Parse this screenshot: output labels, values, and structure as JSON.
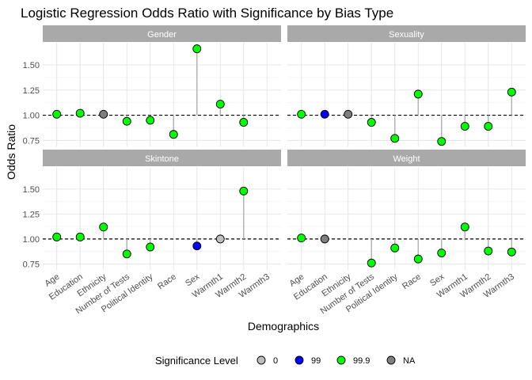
{
  "chart_data": {
    "type": "scatter",
    "title": "Logistic Regression Odds Ratio with Significance by Bias Type",
    "xlabel": "Demographics",
    "ylabel": "Odds Ratio",
    "reference_line": 1.0,
    "ylim": [
      0.69,
      1.72
    ],
    "yticks": [
      0.75,
      1.0,
      1.25,
      1.5
    ],
    "ytick_labels": [
      "0.75",
      "1.00",
      "1.25",
      "1.50"
    ],
    "grid": true,
    "legend_position": "bottom",
    "legend": {
      "title": "Significance Level",
      "entries": [
        {
          "label": "0",
          "color": "#bebebe"
        },
        {
          "label": "99",
          "color": "#0000ff"
        },
        {
          "label": "99.9",
          "color": "#00ff00"
        },
        {
          "label": "NA",
          "color": "#7f7f7f"
        }
      ]
    },
    "categories": [
      "Age",
      "Education",
      "Ethnicity",
      "Number of Tests",
      "Political Identity",
      "Race",
      "Sex",
      "Warmth1",
      "Warmth2",
      "Warmth3"
    ],
    "panels": [
      {
        "name": "Gender",
        "values": [
          1.01,
          1.02,
          1.01,
          0.94,
          0.95,
          0.81,
          1.66,
          1.11,
          0.93,
          null
        ],
        "significance": [
          "99.9",
          "99.9",
          "NA",
          "99.9",
          "99.9",
          "99.9",
          "99.9",
          "99.9",
          "99.9",
          null
        ]
      },
      {
        "name": "Sexuality",
        "values": [
          1.01,
          1.01,
          1.01,
          0.93,
          0.77,
          1.21,
          0.74,
          0.89,
          0.89,
          1.23
        ],
        "significance": [
          "99.9",
          "99",
          "NA",
          "99.9",
          "99.9",
          "99.9",
          "99.9",
          "99.9",
          "99.9",
          "99.9"
        ]
      },
      {
        "name": "Skintone",
        "values": [
          1.02,
          1.02,
          1.12,
          0.85,
          0.92,
          null,
          0.93,
          1.0,
          1.48,
          null
        ],
        "significance": [
          "99.9",
          "99.9",
          "99.9",
          "99.9",
          "99.9",
          null,
          "99",
          "0",
          "99.9",
          null
        ]
      },
      {
        "name": "Weight",
        "values": [
          1.01,
          1.0,
          null,
          0.76,
          0.91,
          0.8,
          0.86,
          1.12,
          0.88,
          0.87
        ],
        "significance": [
          "99.9",
          "NA",
          null,
          "99.9",
          "99.9",
          "99.9",
          "99.9",
          "99.9",
          "99.9",
          "99.9"
        ]
      }
    ]
  }
}
